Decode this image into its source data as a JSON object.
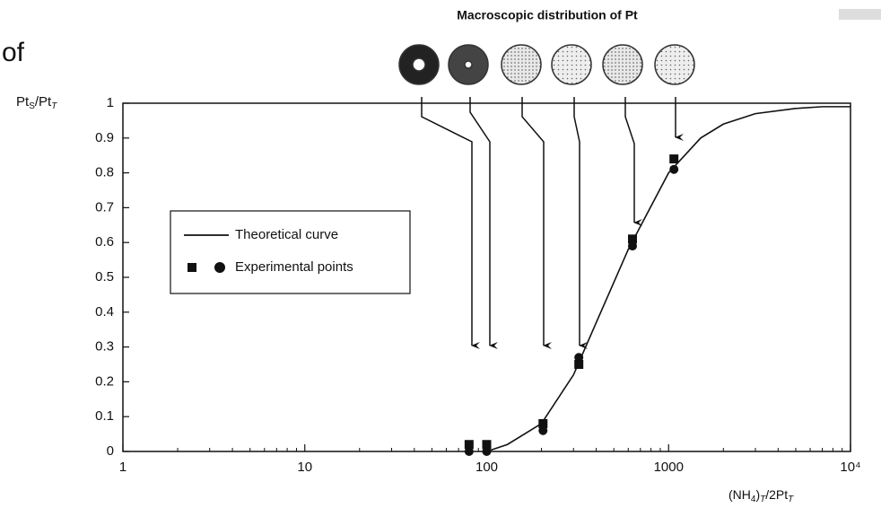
{
  "chart_data": {
    "type": "scatter",
    "fragment": "of",
    "title": "Macroscopic distribution of Pt",
    "ylabel": [
      "Pt",
      "S",
      "/Pt",
      "T"
    ],
    "xlabel": [
      "(NH",
      "4",
      ")",
      "T",
      "/2Pt",
      "T"
    ],
    "xscale": "log",
    "xlim": [
      1,
      10000
    ],
    "ylim": [
      0,
      1
    ],
    "xticks": [
      1,
      10,
      100,
      1000,
      {
        "value": 10000,
        "label": "10⁴"
      }
    ],
    "yticks": [
      0,
      0.1,
      0.2,
      0.3,
      0.4,
      0.5,
      0.6,
      0.7,
      0.8,
      0.9,
      1
    ],
    "color": "#111111",
    "series": [
      {
        "name": "Theoretical curve",
        "marker": "line",
        "x": [
          100,
          130,
          200,
          300,
          400,
          600,
          1000,
          1500,
          2000,
          3000,
          5000,
          7000,
          10000
        ],
        "values": [
          0,
          0.02,
          0.08,
          0.22,
          0.37,
          0.58,
          0.8,
          0.9,
          0.94,
          0.97,
          0.985,
          0.99,
          0.99
        ]
      },
      {
        "name": "Experimental points",
        "marker": "square",
        "x": [
          80,
          100,
          204,
          321,
          633,
          1070
        ],
        "values": [
          0.02,
          0.02,
          0.08,
          0.25,
          0.61,
          0.84
        ]
      },
      {
        "marker": "circle",
        "x": [
          80,
          100,
          204,
          321,
          633,
          1070
        ],
        "values": [
          0,
          0,
          0.06,
          0.27,
          0.59,
          0.81
        ]
      }
    ]
  }
}
